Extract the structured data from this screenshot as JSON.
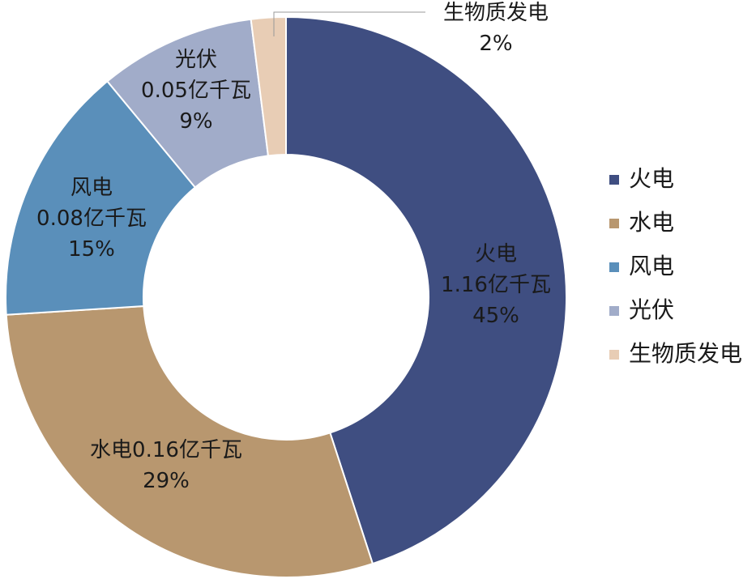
{
  "chart_data": {
    "type": "donut",
    "categories": [
      "火电",
      "水电",
      "风电",
      "光伏",
      "生物质发电"
    ],
    "values": [
      45,
      29,
      15,
      9,
      2
    ],
    "value_labels": [
      "45%",
      "29%",
      "15%",
      "9%",
      "2%"
    ],
    "capacity_labels": [
      "1.16亿千瓦",
      "0.16亿千瓦",
      "0.08亿千瓦",
      "0.05亿千瓦",
      null
    ],
    "colors": [
      "#3f4e81",
      "#b8976f",
      "#5a8fba",
      "#a1acc9",
      "#e8cdb5"
    ],
    "legend": "right"
  }
}
